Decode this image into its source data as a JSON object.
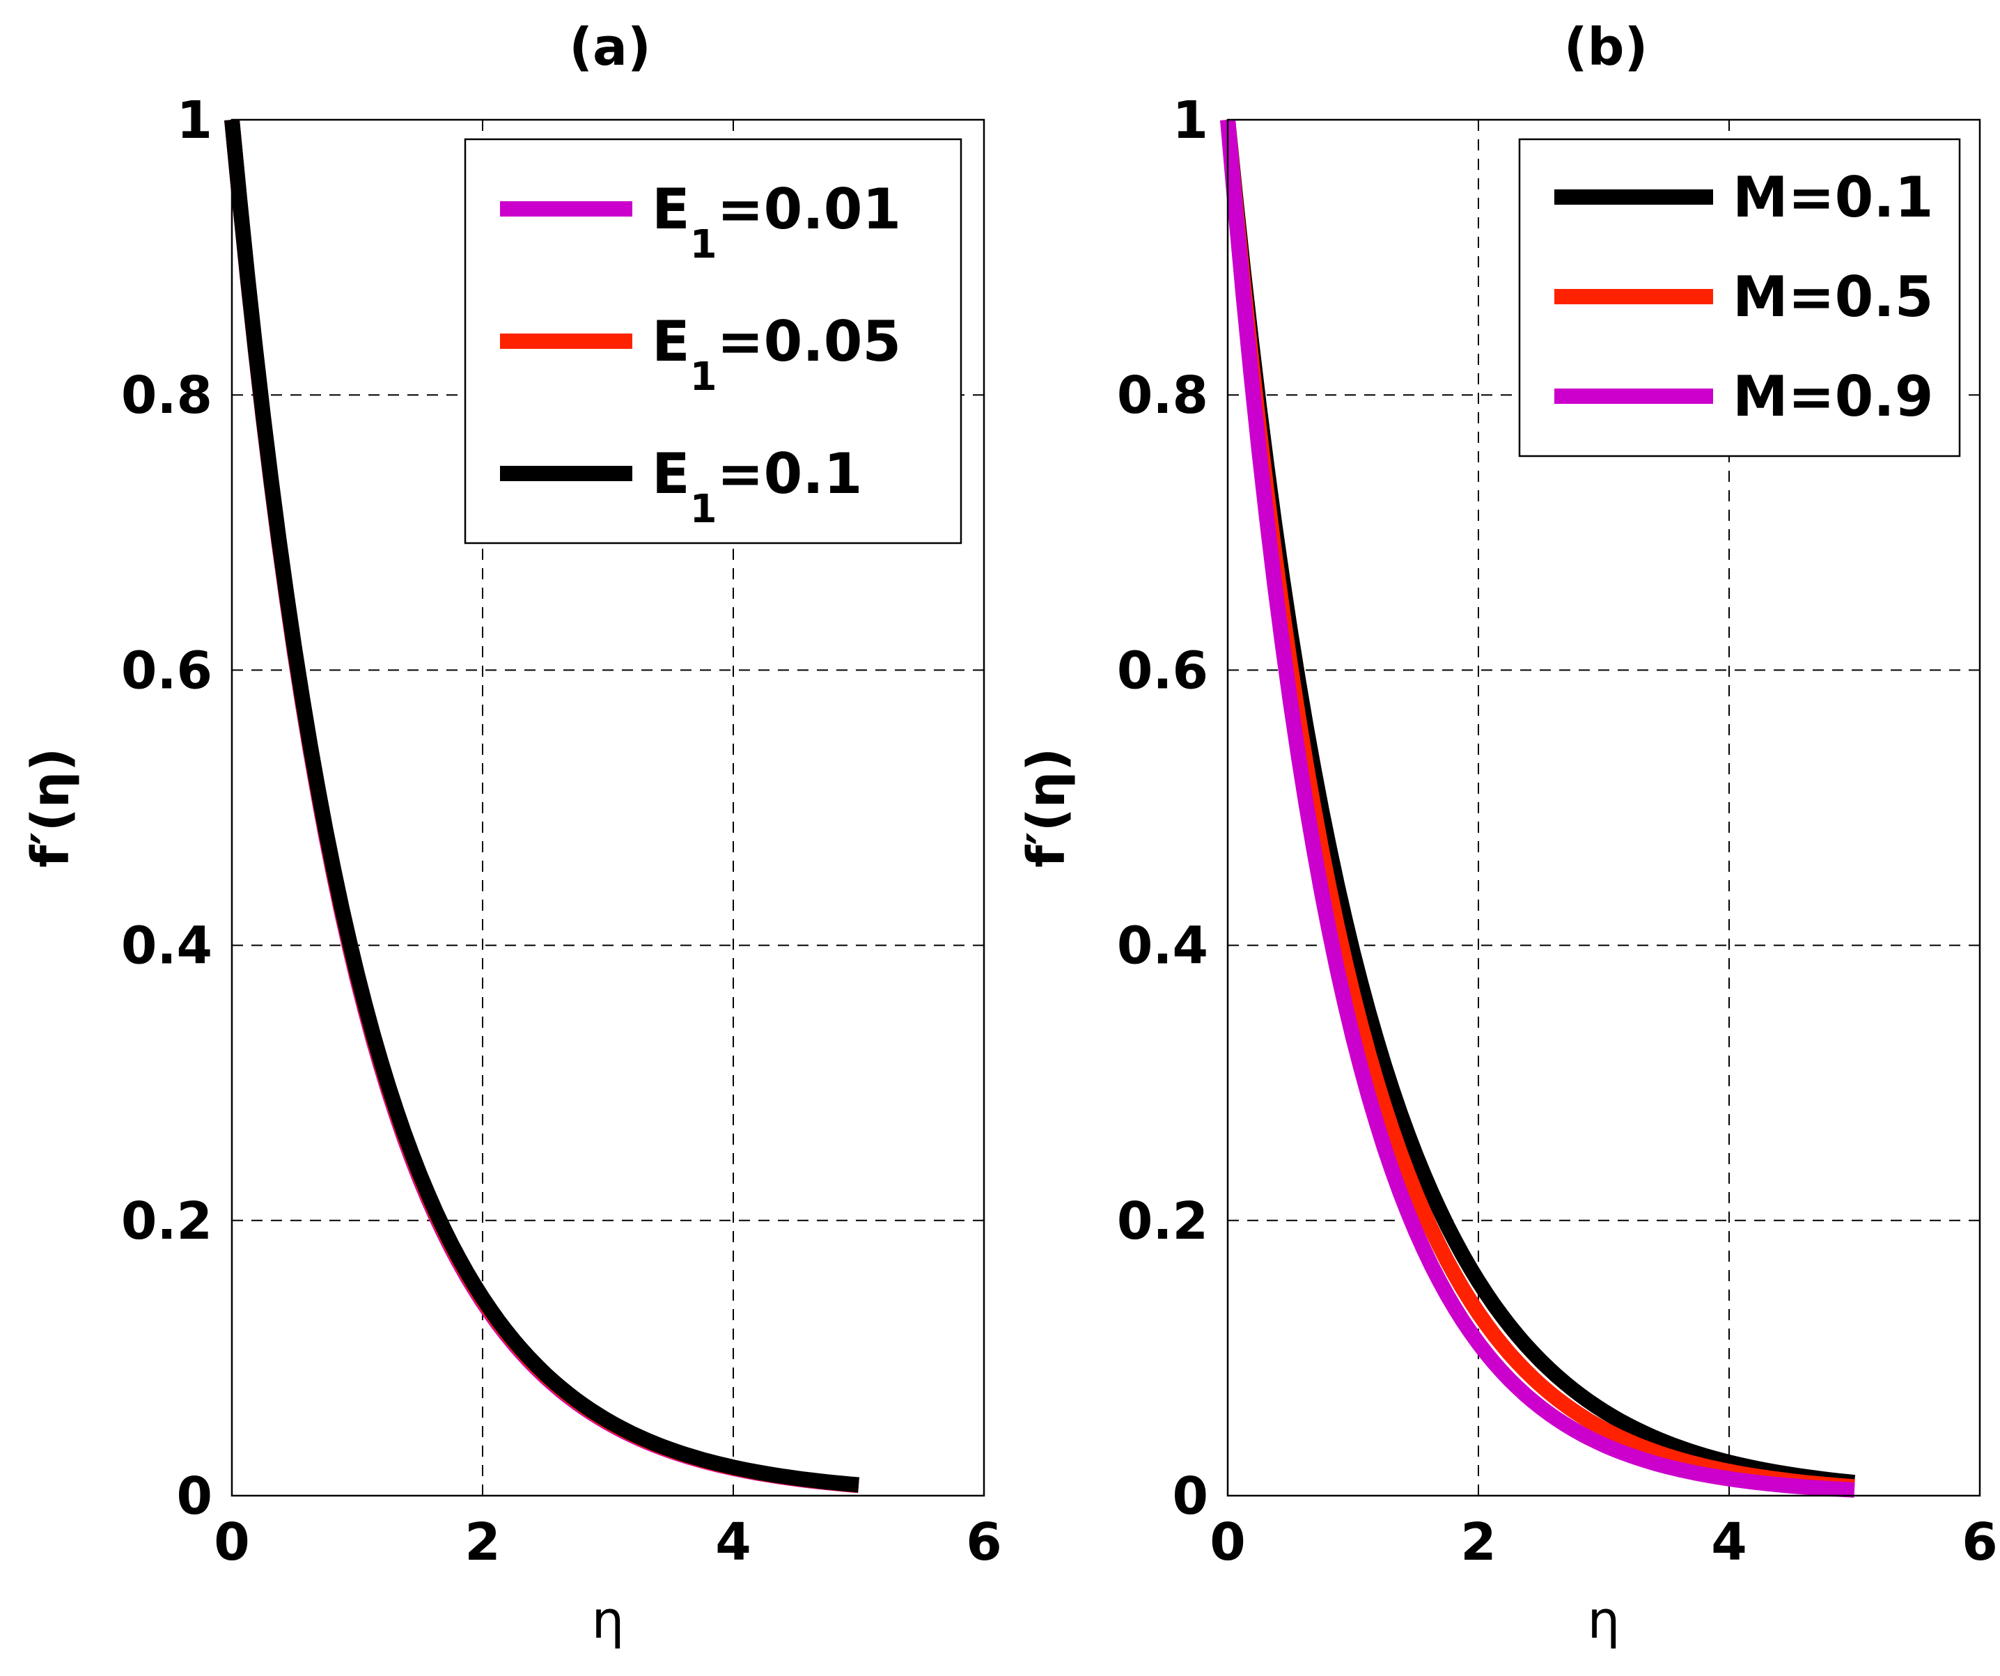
{
  "chart_data": [
    {
      "type": "line",
      "panel_label": "(a)",
      "xlabel": "η",
      "ylabel": "f′(η)",
      "xlim": [
        0,
        6
      ],
      "ylim": [
        0,
        1
      ],
      "xticks": [
        "0",
        "2",
        "4",
        "6"
      ],
      "yticks": [
        "0",
        "0.2",
        "0.4",
        "0.6",
        "0.8",
        "1"
      ],
      "grid": true,
      "legend_position": "top-right",
      "series": [
        {
          "name": "E1=0.01",
          "label_main": "E",
          "label_sub": "1",
          "label_rest": "=0.01",
          "color": "#cc00cc",
          "decay": 0.98
        },
        {
          "name": "E1=0.05",
          "label_main": "E",
          "label_sub": "1",
          "label_rest": "=0.05",
          "color": "#ff2200",
          "decay": 0.975
        },
        {
          "name": "E1=0.1",
          "label_main": "E",
          "label_sub": "1",
          "label_rest": "=0.1",
          "color": "#000000",
          "decay": 0.97
        }
      ],
      "x_range": [
        0,
        5
      ]
    },
    {
      "type": "line",
      "panel_label": "(b)",
      "xlabel": "η",
      "ylabel": "f′(η)",
      "xlim": [
        0,
        6
      ],
      "ylim": [
        0,
        1
      ],
      "xticks": [
        "0",
        "2",
        "4",
        "6"
      ],
      "yticks": [
        "0",
        "0.2",
        "0.4",
        "0.6",
        "0.8",
        "1"
      ],
      "grid": true,
      "legend_position": "top-right",
      "series": [
        {
          "name": "M=0.1",
          "label_main": "M=0.1",
          "label_sub": "",
          "label_rest": "",
          "color": "#000000",
          "decay": 0.93
        },
        {
          "name": "M=0.5",
          "label_main": "M=0.5",
          "label_sub": "",
          "label_rest": "",
          "color": "#ff2200",
          "decay": 1.01
        },
        {
          "name": "M=0.9",
          "label_main": "M=0.9",
          "label_sub": "",
          "label_rest": "",
          "color": "#cc00cc",
          "decay": 1.1
        }
      ],
      "x_range": [
        0,
        5
      ]
    }
  ]
}
